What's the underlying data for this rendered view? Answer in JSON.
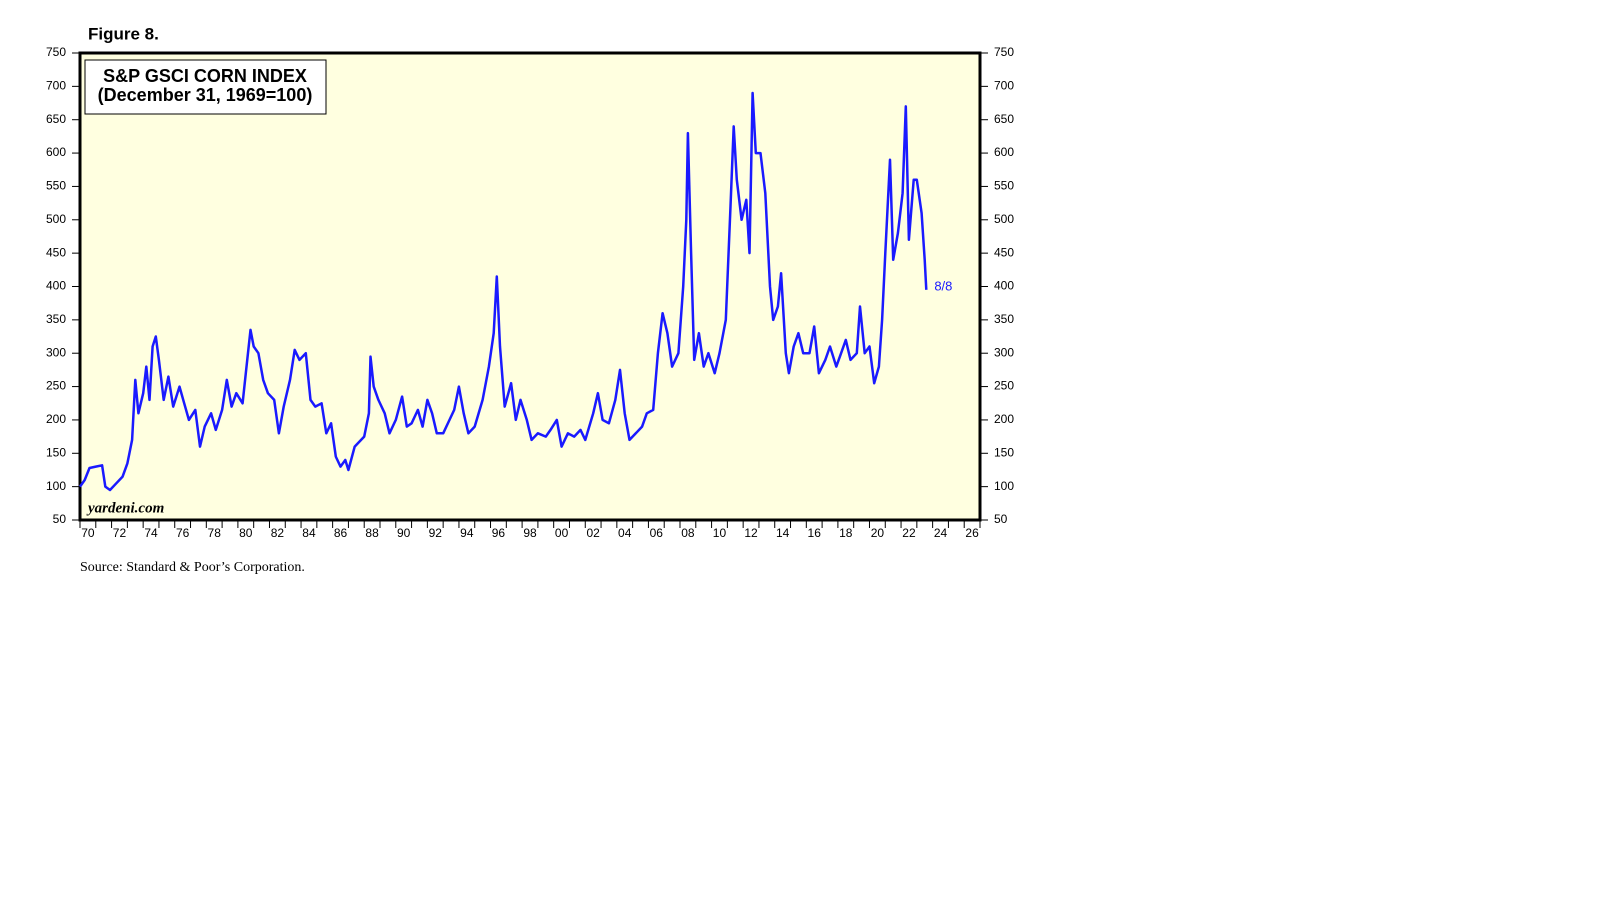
{
  "chart_data": {
    "type": "line",
    "figure_label": "Figure 8.",
    "title": "S&P GSCI CORN INDEX",
    "subtitle": "(December 31, 1969=100)",
    "watermark": "yardeni.com",
    "source": "Source: Standard & Poor’s Corporation.",
    "end_label": "8/8",
    "background": "#ffffe0",
    "xlim": [
      1970,
      2027
    ],
    "ylim": [
      50,
      750
    ],
    "yticks": [
      50,
      100,
      150,
      200,
      250,
      300,
      350,
      400,
      450,
      500,
      550,
      600,
      650,
      700,
      750
    ],
    "xticks": [
      {
        "value": 1970,
        "label": "70"
      },
      {
        "value": 1972,
        "label": "72"
      },
      {
        "value": 1974,
        "label": "74"
      },
      {
        "value": 1976,
        "label": "76"
      },
      {
        "value": 1978,
        "label": "78"
      },
      {
        "value": 1980,
        "label": "80"
      },
      {
        "value": 1982,
        "label": "82"
      },
      {
        "value": 1984,
        "label": "84"
      },
      {
        "value": 1986,
        "label": "86"
      },
      {
        "value": 1988,
        "label": "88"
      },
      {
        "value": 1990,
        "label": "90"
      },
      {
        "value": 1992,
        "label": "92"
      },
      {
        "value": 1994,
        "label": "94"
      },
      {
        "value": 1996,
        "label": "96"
      },
      {
        "value": 1998,
        "label": "98"
      },
      {
        "value": 2000,
        "label": "00"
      },
      {
        "value": 2002,
        "label": "02"
      },
      {
        "value": 2004,
        "label": "04"
      },
      {
        "value": 2006,
        "label": "06"
      },
      {
        "value": 2008,
        "label": "08"
      },
      {
        "value": 2010,
        "label": "10"
      },
      {
        "value": 2012,
        "label": "12"
      },
      {
        "value": 2014,
        "label": "14"
      },
      {
        "value": 2016,
        "label": "16"
      },
      {
        "value": 2018,
        "label": "18"
      },
      {
        "value": 2020,
        "label": "20"
      },
      {
        "value": 2022,
        "label": "22"
      },
      {
        "value": 2024,
        "label": "24"
      },
      {
        "value": 2026,
        "label": "26"
      }
    ],
    "series": [
      {
        "color": "#1a1aff",
        "x": [
          1970.0,
          1970.3,
          1970.6,
          1971.0,
          1971.4,
          1971.6,
          1971.9,
          1972.3,
          1972.7,
          1973.0,
          1973.3,
          1973.5,
          1973.7,
          1974.0,
          1974.2,
          1974.4,
          1974.6,
          1974.8,
          1975.0,
          1975.3,
          1975.6,
          1975.9,
          1976.3,
          1976.6,
          1976.9,
          1977.3,
          1977.6,
          1977.9,
          1978.3,
          1978.6,
          1979.0,
          1979.3,
          1979.6,
          1979.9,
          1980.3,
          1980.5,
          1980.8,
          1981.0,
          1981.3,
          1981.6,
          1981.9,
          1982.3,
          1982.6,
          1982.9,
          1983.3,
          1983.6,
          1983.9,
          1984.3,
          1984.6,
          1984.9,
          1985.3,
          1985.6,
          1985.9,
          1986.2,
          1986.5,
          1986.8,
          1987.0,
          1987.4,
          1987.8,
          1988.0,
          1988.3,
          1988.4,
          1988.6,
          1988.9,
          1989.3,
          1989.6,
          1990.0,
          1990.4,
          1990.7,
          1991.0,
          1991.4,
          1991.7,
          1992.0,
          1992.3,
          1992.6,
          1993.0,
          1993.4,
          1993.7,
          1994.0,
          1994.3,
          1994.6,
          1995.0,
          1995.5,
          1995.9,
          1996.2,
          1996.4,
          1996.6,
          1996.9,
          1997.3,
          1997.6,
          1997.9,
          1998.3,
          1998.6,
          1999.0,
          1999.5,
          1999.8,
          2000.2,
          2000.5,
          2000.9,
          2001.3,
          2001.7,
          2002.0,
          2002.5,
          2002.8,
          2003.1,
          2003.5,
          2003.9,
          2004.2,
          2004.5,
          2004.8,
          2005.2,
          2005.6,
          2005.9,
          2006.3,
          2006.6,
          2006.9,
          2007.2,
          2007.5,
          2007.9,
          2008.2,
          2008.4,
          2008.5,
          2008.7,
          2008.9,
          2009.2,
          2009.5,
          2009.8,
          2010.2,
          2010.5,
          2010.9,
          2011.2,
          2011.4,
          2011.6,
          2011.9,
          2012.2,
          2012.4,
          2012.6,
          2012.8,
          2013.1,
          2013.4,
          2013.7,
          2013.9,
          2014.2,
          2014.4,
          2014.7,
          2014.9,
          2015.2,
          2015.5,
          2015.8,
          2016.2,
          2016.5,
          2016.8,
          2017.2,
          2017.5,
          2017.9,
          2018.2,
          2018.5,
          2018.8,
          2019.2,
          2019.4,
          2019.7,
          2020.0,
          2020.3,
          2020.6,
          2020.8,
          2021.0,
          2021.3,
          2021.5,
          2021.8,
          2022.1,
          2022.3,
          2022.5,
          2022.8,
          2023.0,
          2023.3,
          2023.5,
          2023.6
        ],
        "values": [
          100,
          110,
          128,
          130,
          132,
          100,
          95,
          105,
          115,
          135,
          170,
          260,
          210,
          240,
          280,
          230,
          310,
          325,
          290,
          230,
          265,
          220,
          250,
          225,
          200,
          215,
          160,
          190,
          210,
          185,
          215,
          260,
          220,
          240,
          225,
          270,
          335,
          310,
          300,
          260,
          240,
          230,
          180,
          220,
          260,
          305,
          290,
          300,
          230,
          220,
          225,
          180,
          195,
          145,
          130,
          140,
          125,
          160,
          170,
          175,
          210,
          295,
          250,
          230,
          210,
          180,
          200,
          235,
          190,
          195,
          215,
          190,
          230,
          210,
          180,
          180,
          200,
          215,
          250,
          210,
          180,
          190,
          230,
          280,
          330,
          415,
          310,
          220,
          255,
          200,
          230,
          200,
          170,
          180,
          175,
          185,
          200,
          160,
          180,
          175,
          185,
          170,
          210,
          240,
          200,
          195,
          230,
          275,
          210,
          170,
          180,
          190,
          210,
          215,
          300,
          360,
          330,
          280,
          300,
          400,
          500,
          630,
          450,
          290,
          330,
          280,
          300,
          270,
          300,
          350,
          520,
          640,
          560,
          500,
          530,
          450,
          690,
          600,
          600,
          540,
          400,
          350,
          370,
          420,
          300,
          270,
          310,
          330,
          300,
          300,
          340,
          270,
          290,
          310,
          280,
          300,
          320,
          290,
          300,
          370,
          300,
          310,
          255,
          280,
          350,
          450,
          590,
          440,
          480,
          540,
          670,
          470,
          560,
          560,
          510,
          440,
          395
        ]
      }
    ]
  }
}
